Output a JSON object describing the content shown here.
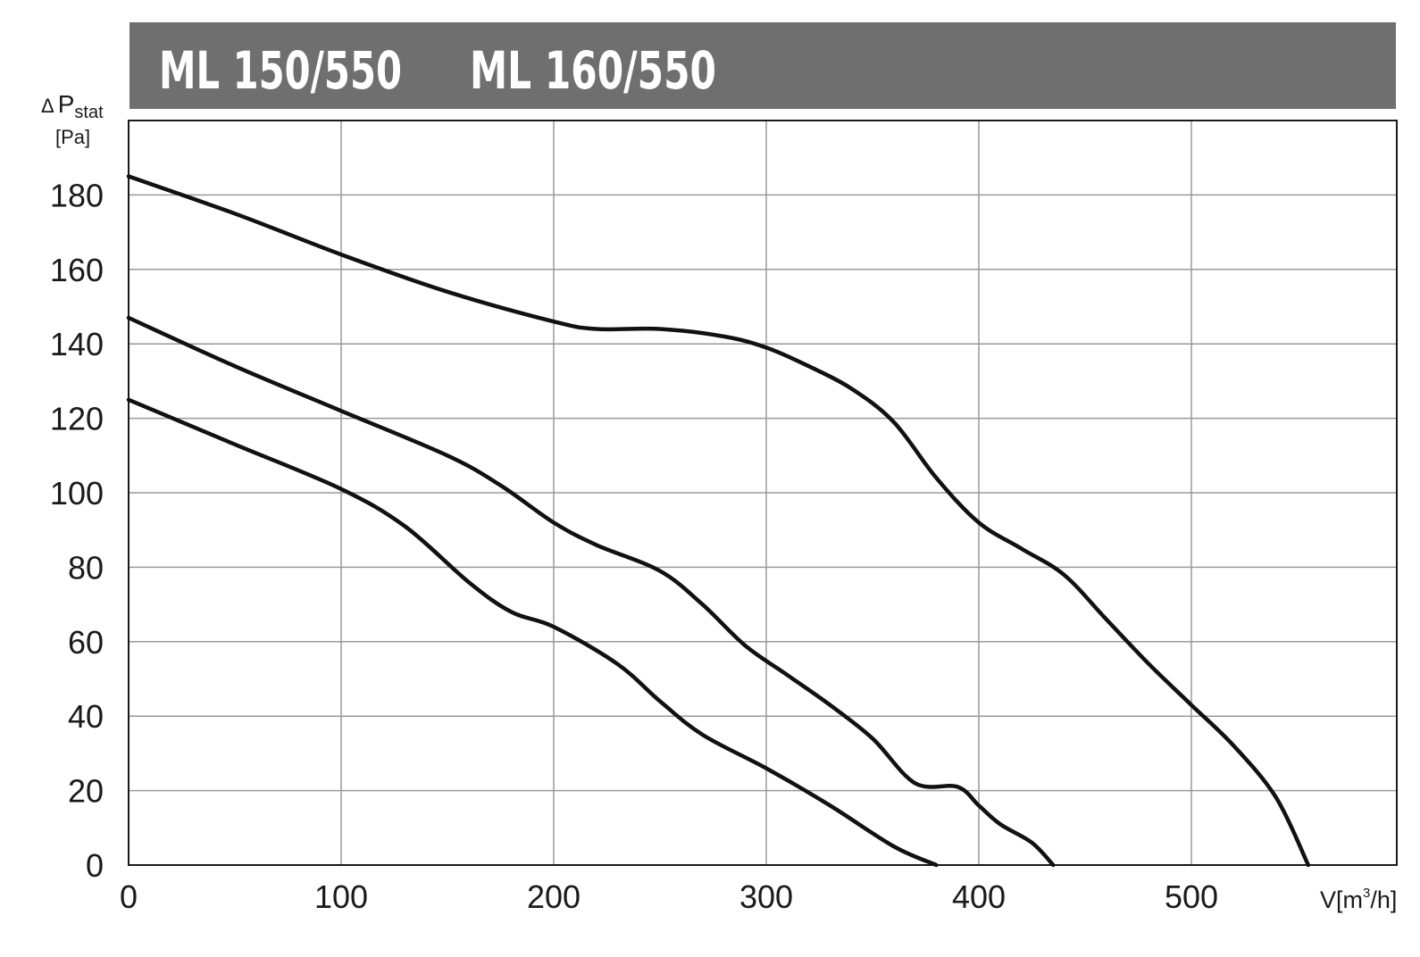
{
  "header": {
    "models": [
      "ML 150/550",
      "ML 160/550"
    ],
    "background_color": "#6f6f6f"
  },
  "chart_data": {
    "type": "line",
    "xlabel": "V[m3/h]",
    "ylabel": "ΔPstat [Pa]",
    "xlim": [
      0,
      600
    ],
    "ylim": [
      0,
      200
    ],
    "xticks": [
      0,
      100,
      200,
      300,
      400,
      500
    ],
    "yticks": [
      0,
      20,
      40,
      60,
      80,
      100,
      120,
      140,
      160,
      180
    ],
    "grid": true,
    "line_color": "#111111",
    "series": [
      {
        "points": [
          [
            0,
            185
          ],
          [
            50,
            175
          ],
          [
            100,
            164
          ],
          [
            150,
            154
          ],
          [
            200,
            146
          ],
          [
            220,
            144
          ],
          [
            250,
            144
          ],
          [
            280,
            142
          ],
          [
            300,
            139
          ],
          [
            320,
            134
          ],
          [
            340,
            128
          ],
          [
            360,
            119
          ],
          [
            380,
            104
          ],
          [
            400,
            92
          ],
          [
            420,
            85
          ],
          [
            440,
            78
          ],
          [
            460,
            66
          ],
          [
            480,
            54
          ],
          [
            500,
            43
          ],
          [
            520,
            32
          ],
          [
            540,
            18
          ],
          [
            555,
            0
          ]
        ]
      },
      {
        "points": [
          [
            0,
            147
          ],
          [
            50,
            134
          ],
          [
            100,
            122
          ],
          [
            150,
            110
          ],
          [
            175,
            102
          ],
          [
            200,
            92
          ],
          [
            220,
            86
          ],
          [
            250,
            79
          ],
          [
            270,
            70
          ],
          [
            290,
            59
          ],
          [
            310,
            51
          ],
          [
            330,
            43
          ],
          [
            350,
            34
          ],
          [
            370,
            22
          ],
          [
            390,
            21
          ],
          [
            400,
            16
          ],
          [
            410,
            11
          ],
          [
            425,
            6
          ],
          [
            435,
            0
          ]
        ]
      },
      {
        "points": [
          [
            0,
            125
          ],
          [
            50,
            113
          ],
          [
            100,
            101
          ],
          [
            130,
            91
          ],
          [
            160,
            76
          ],
          [
            180,
            68
          ],
          [
            200,
            64
          ],
          [
            230,
            54
          ],
          [
            250,
            44
          ],
          [
            270,
            35
          ],
          [
            300,
            26
          ],
          [
            330,
            16
          ],
          [
            360,
            5
          ],
          [
            380,
            0
          ]
        ]
      }
    ]
  }
}
